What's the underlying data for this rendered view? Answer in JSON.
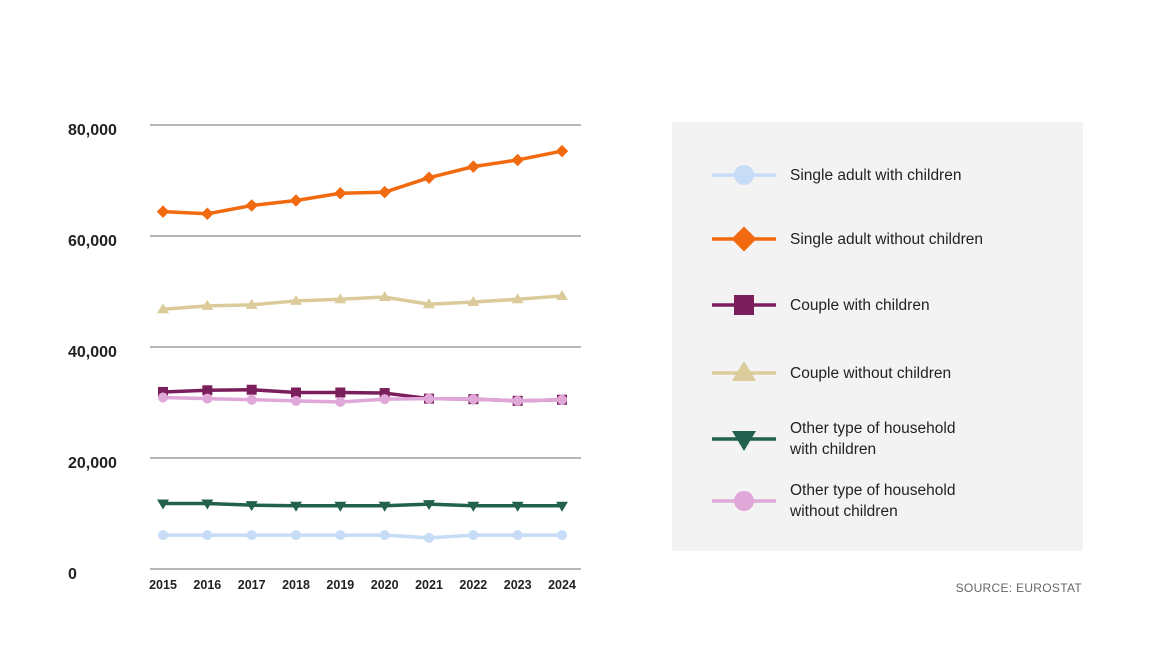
{
  "chart_data": {
    "type": "line",
    "title": "",
    "xlabel": "",
    "ylabel": "",
    "x": [
      "2015",
      "2016",
      "2017",
      "2018",
      "2019",
      "2020",
      "2021",
      "2022",
      "2023",
      "2024"
    ],
    "ylim": [
      0,
      80000
    ],
    "yticks": [
      0,
      20000,
      40000,
      60000,
      80000
    ],
    "ytick_labels": [
      "0",
      "20,000",
      "40,000",
      "60,000",
      "80,000"
    ],
    "grid": "horizontal",
    "legend_position": "right",
    "series": [
      {
        "name": "Single adult with children",
        "color": "#c6dcf7",
        "marker": "circle",
        "values": [
          6100,
          6100,
          6100,
          6100,
          6100,
          6100,
          5600,
          6100,
          6100,
          6100
        ]
      },
      {
        "name": "Single adult without children",
        "color": "#f26a0f",
        "marker": "diamond",
        "values": [
          64400,
          64000,
          65500,
          66400,
          67700,
          67900,
          70500,
          72500,
          73700,
          75300
        ]
      },
      {
        "name": "Couple with children",
        "color": "#7b1f5c",
        "marker": "square",
        "values": [
          31900,
          32200,
          32300,
          31800,
          31800,
          31700,
          30700,
          30600,
          30300,
          30500
        ]
      },
      {
        "name": "Couple without children",
        "color": "#dccb9a",
        "marker": "triangle-up",
        "values": [
          46800,
          47400,
          47600,
          48300,
          48600,
          49000,
          47700,
          48100,
          48600,
          49200
        ]
      },
      {
        "name": "Other type of household\nwith children",
        "color": "#23614f",
        "marker": "triangle-down",
        "values": [
          11800,
          11800,
          11500,
          11400,
          11400,
          11400,
          11700,
          11400,
          11400,
          11400
        ]
      },
      {
        "name": "Other type of household\nwithout children",
        "color": "#e0a8d8",
        "marker": "circle",
        "values": [
          30900,
          30700,
          30500,
          30300,
          30100,
          30600,
          30700,
          30600,
          30300,
          30500
        ]
      }
    ]
  },
  "source": "SOURCE: EUROSTAT"
}
